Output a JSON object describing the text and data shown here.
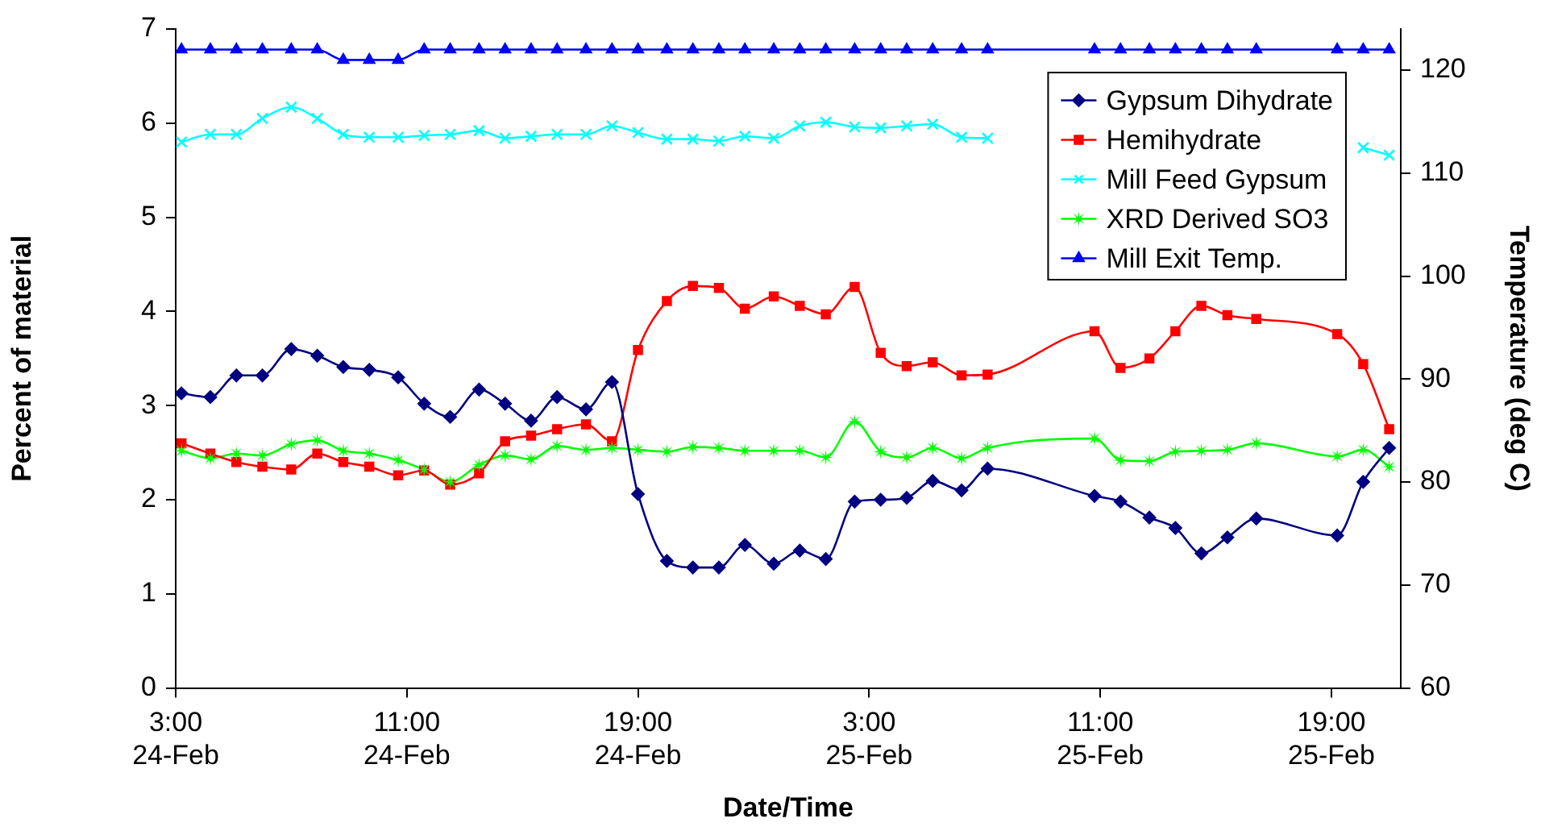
{
  "chart_data": {
    "type": "line",
    "xlabel": "Date/Time",
    "ylabel": "Percent of material",
    "y2label": "Temperature (deg C)",
    "x": [
      "--02-24T03:12",
      "--02-24T04:12",
      "--02-24T05:06",
      "--02-24T06:00",
      "--02-24T07:00",
      "--02-24T07:54",
      "--02-24T08:48",
      "--02-24T09:42",
      "--02-24T10:42",
      "--02-24T11:36",
      "--02-24T12:30",
      "--02-24T13:30",
      "--02-24T14:24",
      "--02-24T15:18",
      "--02-24T16:12",
      "--02-24T17:12",
      "--02-24T18:06",
      "--02-24T19:00",
      "--02-24T20:00",
      "--02-24T20:54",
      "--02-24T21:48",
      "--02-24T22:42",
      "--02-24T23:42",
      "--02-25T00:36",
      "--02-25T01:30",
      "--02-25T02:30",
      "--02-25T03:24",
      "--02-25T04:18",
      "--02-25T05:12",
      "--02-25T06:12",
      "--02-25T07:06",
      "--02-25T10:48",
      "--02-25T11:42",
      "--02-25T12:42",
      "--02-25T13:36",
      "--02-25T14:30",
      "--02-25T15:24",
      "--02-25T16:24",
      "--02-25T19:12",
      "--02-25T20:06",
      "--02-25T21:00"
    ],
    "xlim": [
      "--02-24T03:00",
      "--02-25T21:24"
    ],
    "xticks": [
      {
        "value": "--02-24T03:00",
        "label": "3:00 24-Feb"
      },
      {
        "value": "--02-24T11:00",
        "label": "11:00 24-Feb"
      },
      {
        "value": "--02-24T19:00",
        "label": "19:00 24-Feb"
      },
      {
        "value": "--02-25T03:00",
        "label": "3:00 25-Feb"
      },
      {
        "value": "--02-25T11:00",
        "label": "11:00 25-Feb"
      },
      {
        "value": "--02-25T19:00",
        "label": "19:00 25-Feb"
      }
    ],
    "ylim": [
      0,
      7
    ],
    "yticks": [
      0,
      1,
      2,
      3,
      4,
      5,
      6,
      7
    ],
    "y2lim": [
      60,
      124
    ],
    "y2ticks": [
      60,
      70,
      80,
      90,
      100,
      110,
      120
    ],
    "grid": false,
    "legend": "top right",
    "line_style": "solid",
    "series": [
      {
        "name": "Gypsum Dihydrate",
        "color": "#000080",
        "marker": "diamond",
        "values": [
          3.13,
          3.09,
          3.32,
          3.32,
          3.6,
          3.53,
          3.41,
          3.38,
          3.3,
          3.02,
          2.88,
          3.17,
          3.02,
          2.84,
          3.09,
          2.96,
          3.25,
          2.06,
          1.35,
          1.28,
          1.28,
          1.52,
          1.32,
          1.46,
          1.37,
          1.98,
          2.0,
          2.02,
          2.2,
          2.1,
          2.33,
          2.04,
          1.98,
          1.81,
          1.7,
          1.43,
          1.6,
          1.8,
          1.62,
          2.19,
          2.55
        ]
      },
      {
        "name": "Hemihydrate",
        "color": "#ff0000",
        "marker": "square",
        "values": [
          2.6,
          2.49,
          2.4,
          2.35,
          2.32,
          2.49,
          2.4,
          2.35,
          2.26,
          2.31,
          2.16,
          2.28,
          2.62,
          2.68,
          2.75,
          2.8,
          2.62,
          3.59,
          4.11,
          4.27,
          4.25,
          4.03,
          4.16,
          4.06,
          3.97,
          4.26,
          3.56,
          3.42,
          3.46,
          3.32,
          3.33,
          3.79,
          3.4,
          3.5,
          3.79,
          4.06,
          3.96,
          3.92,
          3.76,
          3.44,
          2.75
        ]
      },
      {
        "name": "Mill Feed Gypsum",
        "color": "#00ffff",
        "marker": "cross",
        "values": [
          5.8,
          5.88,
          5.88,
          6.05,
          6.17,
          6.05,
          5.88,
          5.85,
          5.85,
          5.87,
          5.88,
          5.92,
          5.84,
          5.86,
          5.88,
          5.88,
          5.97,
          5.9,
          5.83,
          5.83,
          5.81,
          5.86,
          5.84,
          5.97,
          6.01,
          5.96,
          5.95,
          5.97,
          5.99,
          5.85,
          5.84,
          null,
          null,
          null,
          null,
          null,
          null,
          null,
          null,
          5.74,
          5.66
        ]
      },
      {
        "name": "XRD Derived SO3",
        "color": "#00ff00",
        "marker": "star",
        "values": [
          2.52,
          2.44,
          2.49,
          2.47,
          2.59,
          2.63,
          2.52,
          2.49,
          2.42,
          2.32,
          2.19,
          2.37,
          2.47,
          2.43,
          2.57,
          2.53,
          2.55,
          2.53,
          2.51,
          2.56,
          2.55,
          2.52,
          2.52,
          2.52,
          2.45,
          2.83,
          2.51,
          2.45,
          2.55,
          2.44,
          2.55,
          2.65,
          2.42,
          2.41,
          2.51,
          2.52,
          2.53,
          2.6,
          2.46,
          2.53,
          2.35
        ]
      },
      {
        "name": "Mill Exit Temp.",
        "color": "#0000ff",
        "marker": "triangle",
        "axis": "y2",
        "values": [
          122,
          122,
          122,
          122,
          122,
          122,
          121,
          121,
          121,
          122,
          122,
          122,
          122,
          122,
          122,
          122,
          122,
          122,
          122,
          122,
          122,
          122,
          122,
          122,
          122,
          122,
          122,
          122,
          122,
          122,
          122,
          122,
          122,
          122,
          122,
          122,
          122,
          122,
          122,
          122,
          122
        ]
      }
    ]
  }
}
